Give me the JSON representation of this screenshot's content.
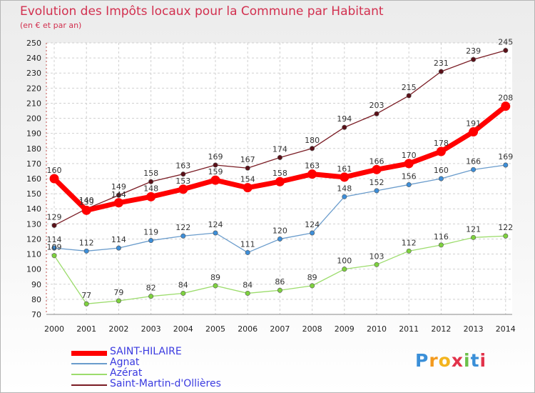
{
  "title": "Evolution des Impôts locaux pour la Commune par Habitant",
  "subtitle": "(en € et par an)",
  "logo_text": "Proxiti",
  "chart_data": {
    "type": "line",
    "title": "Evolution des Impôts locaux pour la Commune par Habitant",
    "subtitle": "(en € et par an)",
    "x": [
      "2000",
      "2001",
      "2002",
      "2003",
      "2004",
      "2005",
      "2006",
      "2007",
      "2008",
      "2009",
      "2010",
      "2011",
      "2012",
      "2013",
      "2014"
    ],
    "ylim": [
      70,
      250
    ],
    "yticks": [
      70,
      80,
      90,
      100,
      110,
      120,
      130,
      140,
      150,
      160,
      170,
      180,
      190,
      200,
      210,
      220,
      230,
      240,
      250
    ],
    "grid": true,
    "series": [
      {
        "name": "Saint-Martin-d'Ollières",
        "color": "#7a1c24",
        "point_color": "#5a1018",
        "values": [
          129,
          140,
          149,
          158,
          163,
          169,
          167,
          174,
          180,
          194,
          203,
          215,
          231,
          239,
          245
        ]
      },
      {
        "name": "Agnat",
        "color": "#6a9ccc",
        "point_color": "#3d8ed8",
        "values": [
          114,
          112,
          114,
          119,
          122,
          124,
          111,
          120,
          124,
          148,
          152,
          156,
          160,
          166,
          169
        ]
      },
      {
        "name": "Azérat",
        "color": "#9cdc6c",
        "point_color": "#7ed23e",
        "values": [
          109,
          77,
          79,
          82,
          84,
          89,
          84,
          86,
          89,
          100,
          103,
          112,
          116,
          121,
          122
        ]
      },
      {
        "name": "SAINT-HILAIRE",
        "color": "#ff0000",
        "point_color": "#ff0000",
        "values": [
          160,
          139,
          144,
          148,
          153,
          159,
          154,
          158,
          163,
          161,
          166,
          170,
          178,
          191,
          208
        ]
      }
    ],
    "legend": [
      {
        "name": "SAINT-HILAIRE",
        "color": "#ff0000"
      },
      {
        "name": "Agnat",
        "color": "#6a9ccc"
      },
      {
        "name": "Azérat",
        "color": "#9cdc6c"
      },
      {
        "name": "Saint-Martin-d'Ollières",
        "color": "#7a1c24"
      }
    ]
  }
}
